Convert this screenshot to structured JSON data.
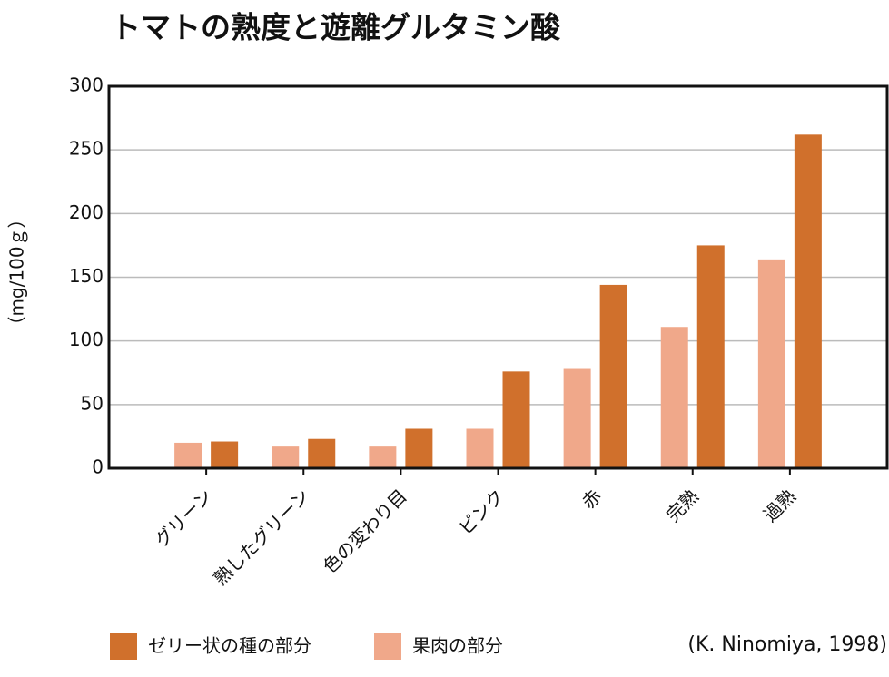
{
  "chart_data": {
    "type": "bar",
    "title": "トマトの熟度と遊離グルタミン酸",
    "y_label": "（mg/100ｇ）",
    "source": "(K. Ninomiya, 1998)",
    "categories": [
      "グリーン",
      "熟したグリーン",
      "色の変わり目",
      "ピンク",
      "赤",
      "完熟",
      "過熟"
    ],
    "series": [
      {
        "name": "ゼリー状の種の部分",
        "color": "#d0702c",
        "values": [
          21,
          23,
          31,
          76,
          144,
          175,
          262
        ]
      },
      {
        "name": "果肉の部分",
        "color": "#f0a88a",
        "values": [
          20,
          17,
          17,
          31,
          78,
          111,
          164
        ]
      }
    ],
    "ylim": [
      0,
      300
    ],
    "yticks": [
      0,
      50,
      100,
      150,
      200,
      250,
      300
    ],
    "grid": true
  }
}
